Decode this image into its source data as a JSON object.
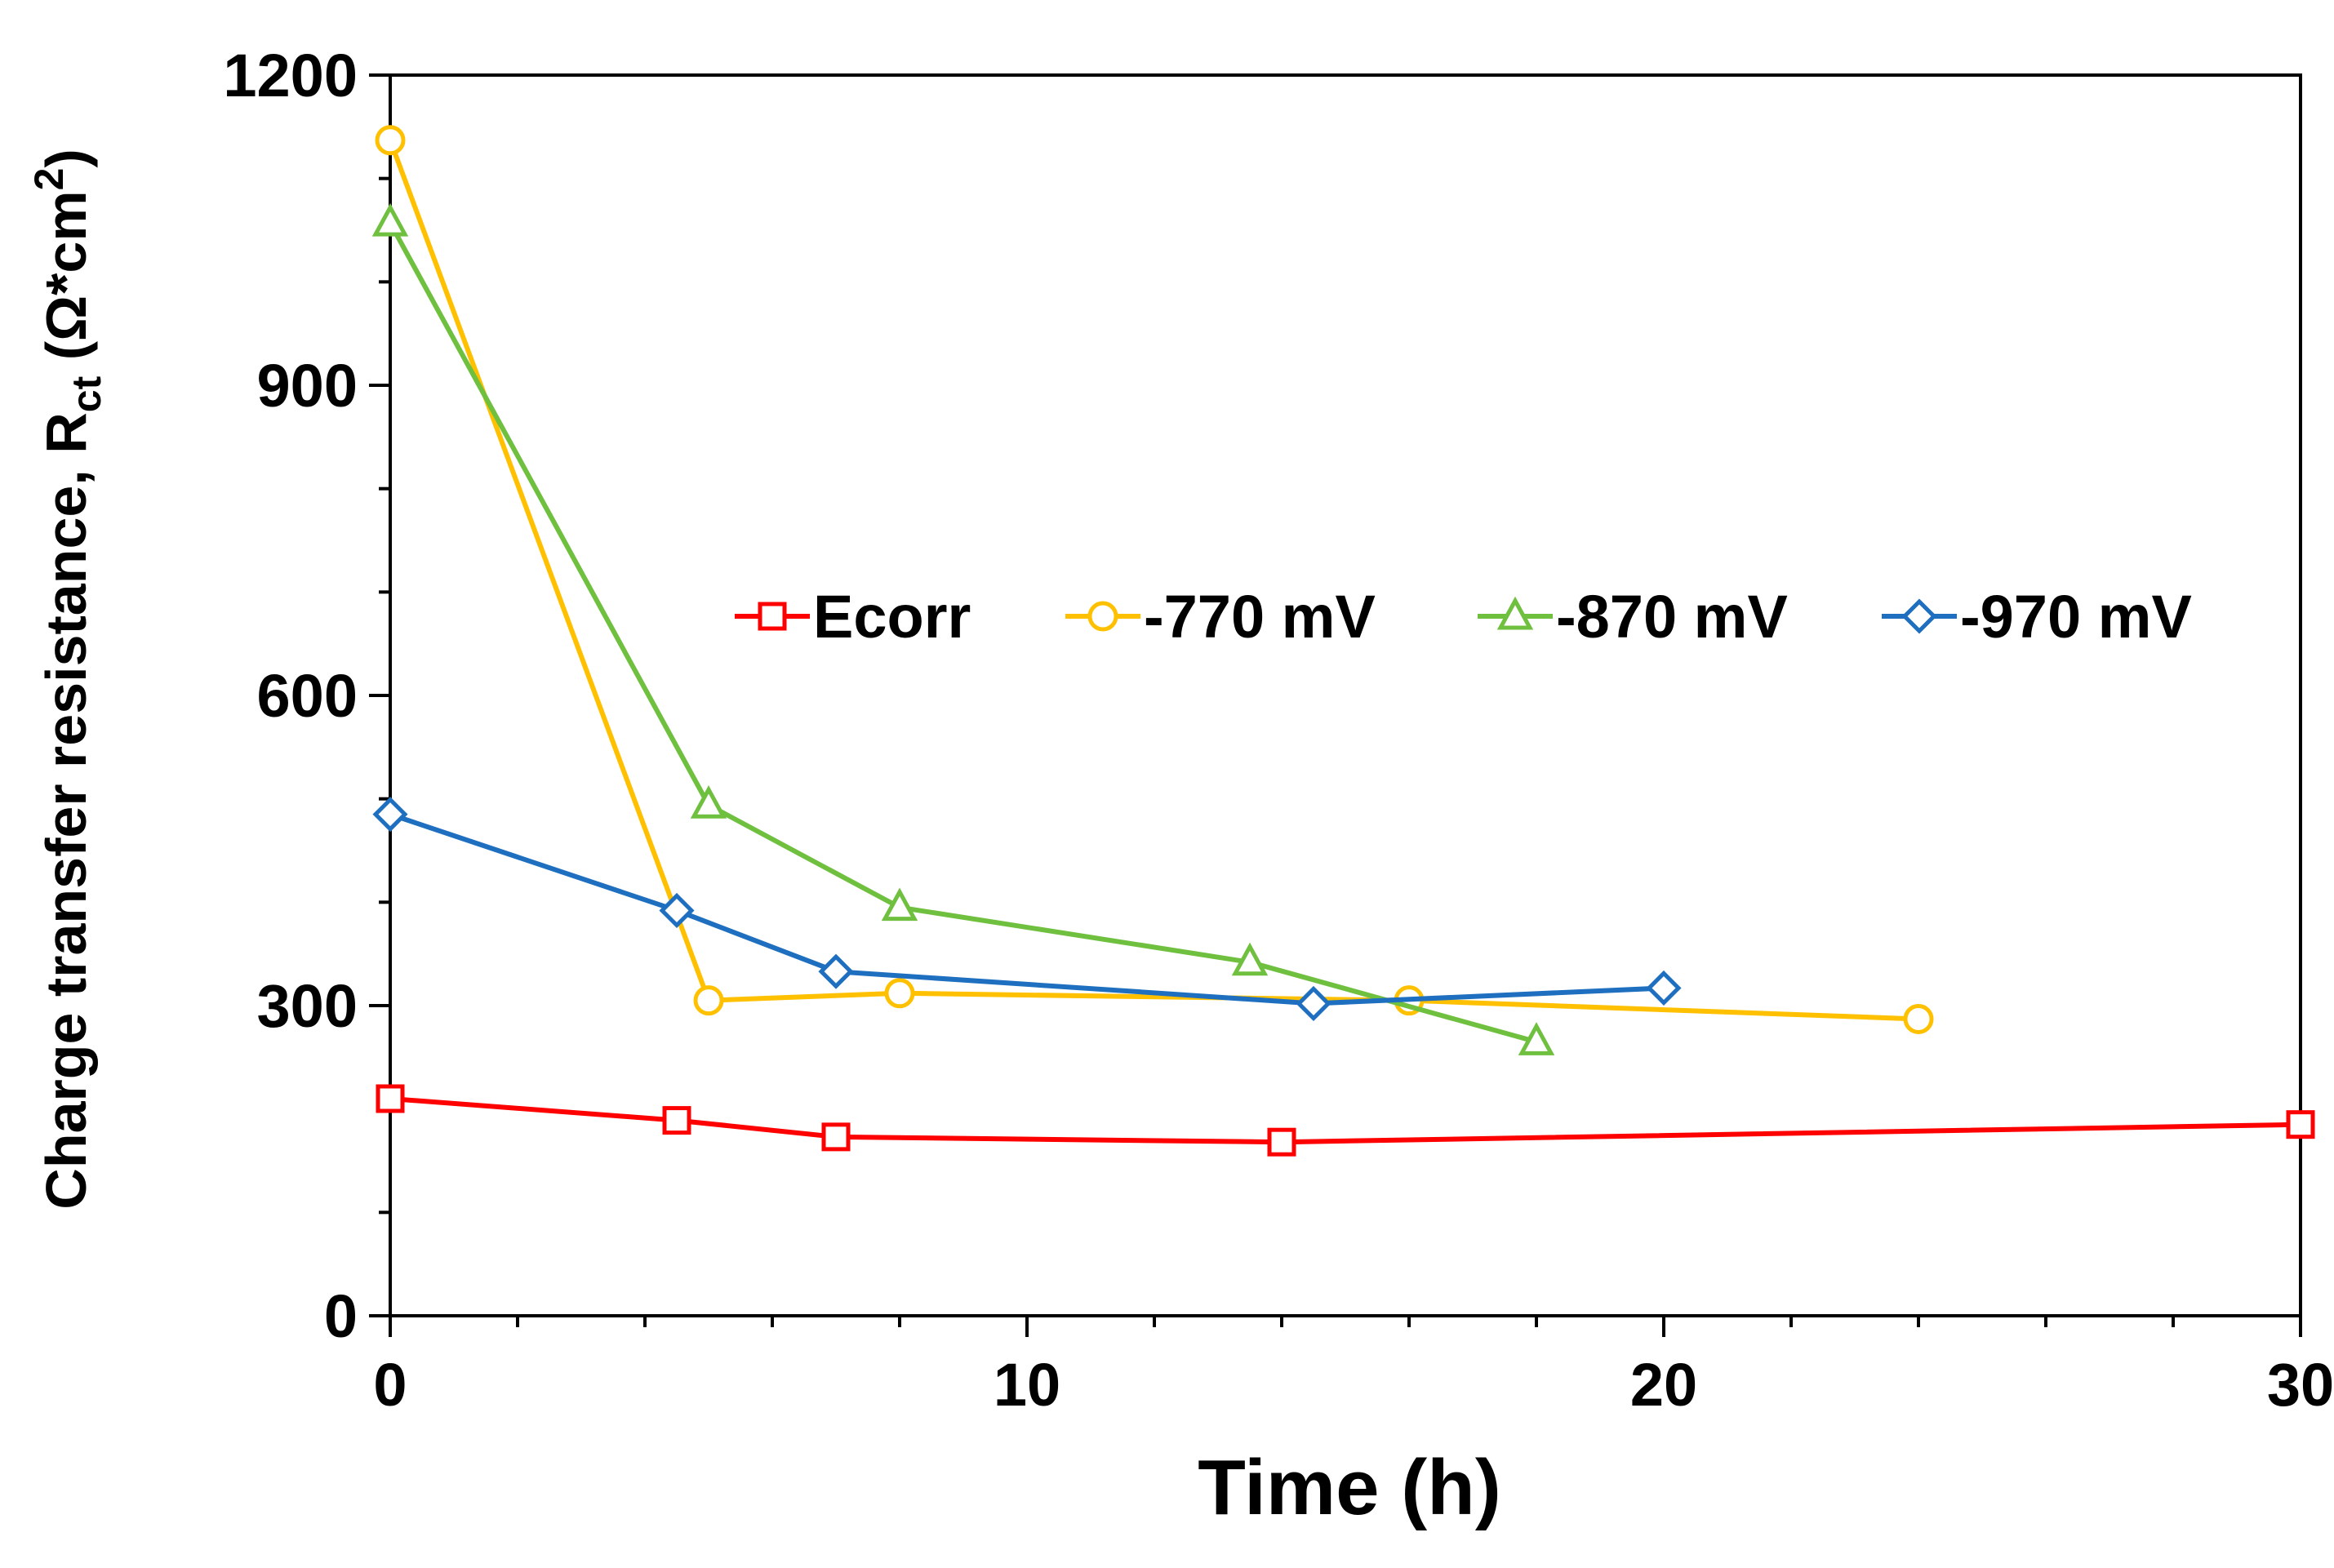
{
  "chart_data": {
    "type": "line",
    "title": "",
    "xlabel": "Time (h)",
    "ylabel": {
      "prefix": "Charge transfer resistance, R",
      "subscript": "ct",
      "unit_open": " (Ω*cm",
      "superscript": "2",
      "unit_close": ")"
    },
    "xlim": [
      0,
      30
    ],
    "ylim": [
      0,
      1200
    ],
    "xticks": [
      0,
      10,
      20,
      30
    ],
    "yticks": [
      0,
      300,
      600,
      900,
      1200
    ],
    "x_minor_step": 2,
    "y_minor_step": 100,
    "grid": false,
    "legend_position": "center",
    "series": [
      {
        "name": "Ecorr",
        "color": "#ff0000",
        "marker": "square",
        "x": [
          0,
          4.5,
          7,
          14,
          30
        ],
        "y": [
          210,
          189,
          173,
          168,
          185
        ]
      },
      {
        "name": "-770 mV",
        "color": "#ffc000",
        "marker": "circle",
        "x": [
          0,
          5,
          8,
          16,
          24
        ],
        "y": [
          1137,
          305,
          312,
          305,
          287
        ]
      },
      {
        "name": "-870 mV",
        "color": "#70c040",
        "marker": "triangle",
        "x": [
          0,
          5,
          8,
          13.5,
          18
        ],
        "y": [
          1057,
          494,
          395,
          342,
          265
        ]
      },
      {
        "name": "-970 mV",
        "color": "#1e6fbf",
        "marker": "diamond",
        "x": [
          0,
          4.5,
          7,
          14.5,
          20
        ],
        "y": [
          485,
          392,
          333,
          302,
          317
        ]
      }
    ]
  }
}
